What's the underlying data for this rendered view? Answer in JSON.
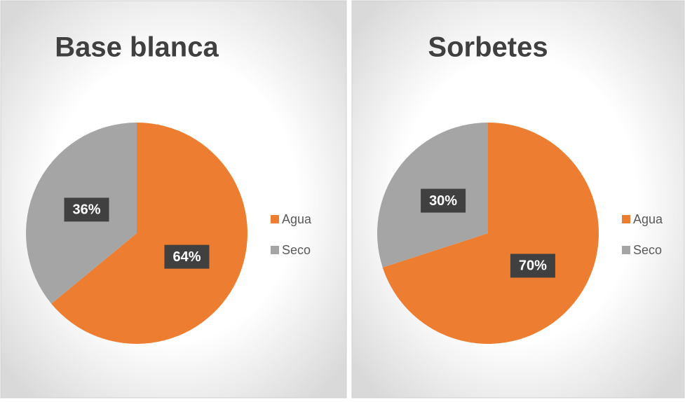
{
  "chart_data": [
    {
      "type": "pie",
      "title": "Base blanca",
      "categories": [
        "Agua",
        "Seco"
      ],
      "values": [
        64,
        36
      ],
      "value_labels": [
        "64%",
        "36%"
      ],
      "colors": [
        "#ed7d31",
        "#a5a5a5"
      ],
      "legend": "right"
    },
    {
      "type": "pie",
      "title": "Sorbetes",
      "categories": [
        "Agua",
        "Seco"
      ],
      "values": [
        70,
        30
      ],
      "value_labels": [
        "70%",
        "30%"
      ],
      "colors": [
        "#ed7d31",
        "#a5a5a5"
      ],
      "legend": "right"
    }
  ]
}
